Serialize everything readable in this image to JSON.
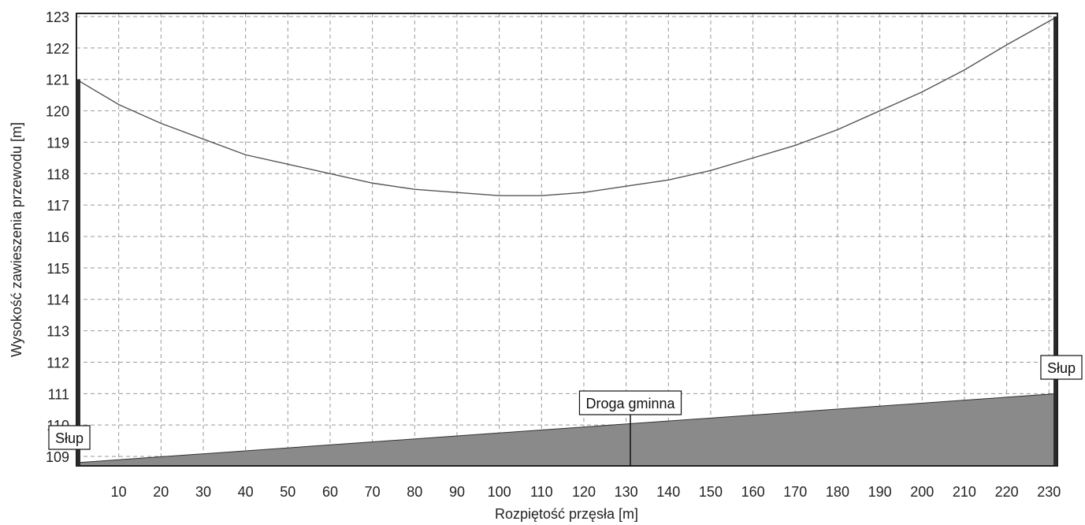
{
  "chart_data": {
    "type": "line",
    "title": "",
    "xlabel": "Rozpiętość przęsła [m]",
    "ylabel": "Wysokość zawieszenia przewodu [m]",
    "xlim": [
      0,
      232
    ],
    "ylim": [
      108.7,
      123.1
    ],
    "x_ticks": [
      10,
      20,
      30,
      40,
      50,
      60,
      70,
      80,
      90,
      100,
      110,
      120,
      130,
      140,
      150,
      160,
      170,
      180,
      190,
      200,
      210,
      220,
      230
    ],
    "y_ticks": [
      109,
      110,
      111,
      112,
      113,
      114,
      115,
      116,
      117,
      118,
      119,
      120,
      121,
      122,
      123
    ],
    "grid": true,
    "series": [
      {
        "role": "conductor",
        "color": "#555555",
        "points": [
          [
            0,
            121.0
          ],
          [
            10,
            120.2
          ],
          [
            20,
            119.6
          ],
          [
            30,
            119.1
          ],
          [
            40,
            118.6
          ],
          [
            50,
            118.3
          ],
          [
            60,
            118.0
          ],
          [
            70,
            117.7
          ],
          [
            80,
            117.5
          ],
          [
            90,
            117.4
          ],
          [
            100,
            117.3
          ],
          [
            110,
            117.3
          ],
          [
            120,
            117.4
          ],
          [
            130,
            117.6
          ],
          [
            140,
            117.8
          ],
          [
            150,
            118.1
          ],
          [
            160,
            118.5
          ],
          [
            170,
            118.9
          ],
          [
            180,
            119.4
          ],
          [
            190,
            120.0
          ],
          [
            200,
            120.6
          ],
          [
            210,
            121.3
          ],
          [
            220,
            122.1
          ],
          [
            232,
            123.0
          ]
        ]
      },
      {
        "role": "terrain",
        "type": "area",
        "color": "#8a8a8a",
        "points": [
          [
            0,
            108.8
          ],
          [
            232,
            111.0
          ]
        ]
      }
    ],
    "poles": [
      {
        "x": 0,
        "top": 121.0,
        "label": "Słup"
      },
      {
        "x": 232,
        "top": 123.0,
        "label": "Słup"
      }
    ],
    "annotations": [
      {
        "x": 131,
        "label": "Droga gminna"
      }
    ],
    "colors": {
      "grid": "#999999",
      "terrain": "#8a8a8a",
      "pole": "#2b2b2b",
      "line": "#555555"
    }
  }
}
